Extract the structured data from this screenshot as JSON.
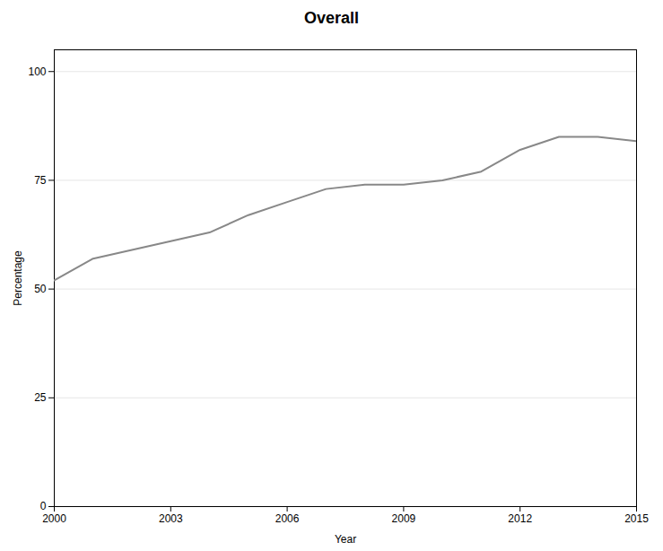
{
  "chart_data": {
    "type": "line",
    "title": "Overall",
    "xlabel": "Year",
    "ylabel": "Percentage",
    "x": [
      2000,
      2001,
      2002,
      2003,
      2004,
      2005,
      2006,
      2007,
      2008,
      2009,
      2010,
      2011,
      2012,
      2013,
      2014,
      2015
    ],
    "values": [
      52,
      57,
      59,
      61,
      63,
      67,
      70,
      73,
      74,
      74,
      75,
      77,
      82,
      85,
      85,
      84
    ],
    "color": "#888888",
    "xlim": [
      2000,
      2015
    ],
    "ylim": [
      0,
      105
    ],
    "xticks": [
      2000,
      2003,
      2006,
      2009,
      2012,
      2015
    ],
    "yticks": [
      0,
      25,
      50,
      75,
      100
    ],
    "grid": true
  }
}
